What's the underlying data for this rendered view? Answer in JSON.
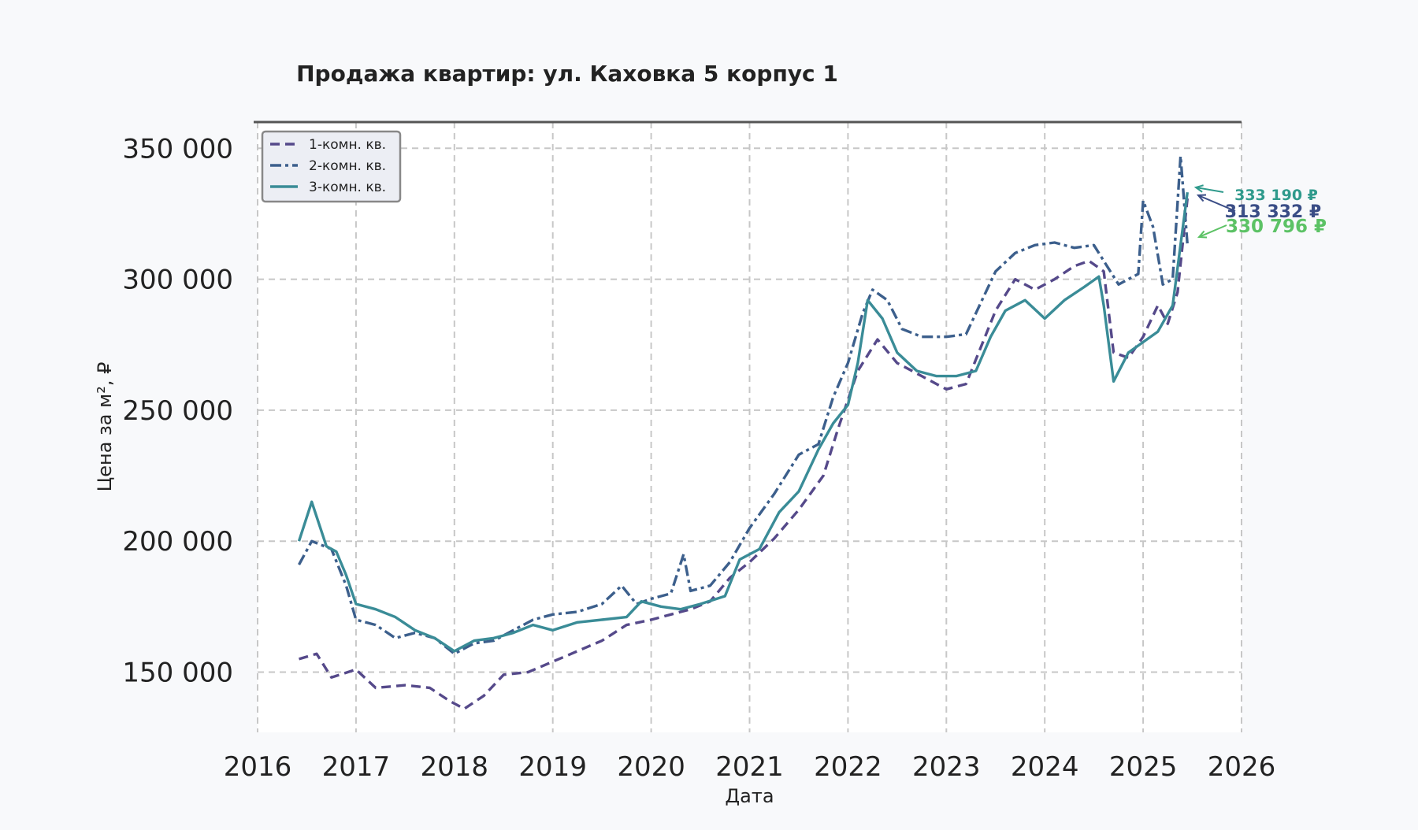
{
  "chart_data": {
    "type": "line",
    "title": "Продажа квартир: ул. Каховка 5 корпус 1",
    "xlabel": "Дата",
    "ylabel": "Цена за м², ₽",
    "xlim": [
      2016,
      2026
    ],
    "ylim": [
      127000,
      360000
    ],
    "x_ticks": [
      "2016",
      "2017",
      "2018",
      "2019",
      "2020",
      "2021",
      "2022",
      "2023",
      "2024",
      "2025",
      "2026"
    ],
    "y_ticks": [
      "150 000",
      "200 000",
      "250 000",
      "300 000",
      "350 000"
    ],
    "grid": true,
    "legend_position": "top-left",
    "series": [
      {
        "name": "1-комн. кв.",
        "color": "#55498a",
        "style": "dashed",
        "points": [
          [
            2016.42,
            155000
          ],
          [
            2016.6,
            157000
          ],
          [
            2016.75,
            148000
          ],
          [
            2017.0,
            151000
          ],
          [
            2017.2,
            144000
          ],
          [
            2017.5,
            145000
          ],
          [
            2017.75,
            144000
          ],
          [
            2017.95,
            139000
          ],
          [
            2018.1,
            136000
          ],
          [
            2018.3,
            141000
          ],
          [
            2018.5,
            149000
          ],
          [
            2018.75,
            150000
          ],
          [
            2019.0,
            154000
          ],
          [
            2019.25,
            158000
          ],
          [
            2019.5,
            162000
          ],
          [
            2019.75,
            168000
          ],
          [
            2020.0,
            170000
          ],
          [
            2020.2,
            172000
          ],
          [
            2020.4,
            174000
          ],
          [
            2020.6,
            177000
          ],
          [
            2020.8,
            186000
          ],
          [
            2021.0,
            192000
          ],
          [
            2021.25,
            201000
          ],
          [
            2021.5,
            212000
          ],
          [
            2021.75,
            225000
          ],
          [
            2021.9,
            243000
          ],
          [
            2022.1,
            265000
          ],
          [
            2022.3,
            277000
          ],
          [
            2022.5,
            268000
          ],
          [
            2022.75,
            263000
          ],
          [
            2023.0,
            258000
          ],
          [
            2023.2,
            260000
          ],
          [
            2023.35,
            274000
          ],
          [
            2023.5,
            288000
          ],
          [
            2023.7,
            300000
          ],
          [
            2023.9,
            296000
          ],
          [
            2024.1,
            300000
          ],
          [
            2024.3,
            305000
          ],
          [
            2024.45,
            307000
          ],
          [
            2024.6,
            303000
          ],
          [
            2024.7,
            272000
          ],
          [
            2024.85,
            270000
          ],
          [
            2025.0,
            278000
          ],
          [
            2025.15,
            290000
          ],
          [
            2025.25,
            283000
          ],
          [
            2025.35,
            295000
          ],
          [
            2025.45,
            330796
          ]
        ]
      },
      {
        "name": "2-комн. кв.",
        "color": "#3c5f8c",
        "style": "dashdot",
        "points": [
          [
            2016.42,
            191000
          ],
          [
            2016.55,
            200000
          ],
          [
            2016.75,
            197000
          ],
          [
            2016.9,
            183000
          ],
          [
            2017.0,
            170000
          ],
          [
            2017.2,
            168000
          ],
          [
            2017.4,
            163000
          ],
          [
            2017.6,
            165000
          ],
          [
            2017.8,
            163000
          ],
          [
            2018.0,
            157000
          ],
          [
            2018.2,
            161000
          ],
          [
            2018.4,
            162000
          ],
          [
            2018.6,
            166000
          ],
          [
            2018.8,
            170000
          ],
          [
            2019.0,
            172000
          ],
          [
            2019.25,
            173000
          ],
          [
            2019.5,
            176000
          ],
          [
            2019.7,
            183000
          ],
          [
            2019.85,
            176000
          ],
          [
            2020.0,
            178000
          ],
          [
            2020.2,
            180000
          ],
          [
            2020.33,
            195000
          ],
          [
            2020.4,
            181000
          ],
          [
            2020.6,
            183000
          ],
          [
            2020.8,
            192000
          ],
          [
            2021.0,
            205000
          ],
          [
            2021.25,
            218000
          ],
          [
            2021.5,
            233000
          ],
          [
            2021.7,
            237000
          ],
          [
            2021.85,
            255000
          ],
          [
            2022.0,
            268000
          ],
          [
            2022.15,
            287000
          ],
          [
            2022.25,
            296000
          ],
          [
            2022.4,
            292000
          ],
          [
            2022.55,
            281000
          ],
          [
            2022.75,
            278000
          ],
          [
            2023.0,
            278000
          ],
          [
            2023.2,
            279000
          ],
          [
            2023.35,
            291000
          ],
          [
            2023.5,
            303000
          ],
          [
            2023.7,
            310000
          ],
          [
            2023.9,
            313000
          ],
          [
            2024.1,
            314000
          ],
          [
            2024.3,
            312000
          ],
          [
            2024.5,
            313000
          ],
          [
            2024.6,
            307000
          ],
          [
            2024.75,
            298000
          ],
          [
            2024.95,
            302000
          ],
          [
            2025.0,
            330000
          ],
          [
            2025.1,
            320000
          ],
          [
            2025.2,
            298000
          ],
          [
            2025.3,
            300000
          ],
          [
            2025.38,
            347000
          ],
          [
            2025.45,
            313332
          ]
        ]
      },
      {
        "name": "3-комн. кв.",
        "color": "#3a8c97",
        "style": "solid",
        "points": [
          [
            2016.42,
            200000
          ],
          [
            2016.55,
            215000
          ],
          [
            2016.7,
            198000
          ],
          [
            2016.8,
            196000
          ],
          [
            2016.9,
            187000
          ],
          [
            2017.0,
            176000
          ],
          [
            2017.2,
            174000
          ],
          [
            2017.4,
            171000
          ],
          [
            2017.6,
            166000
          ],
          [
            2017.8,
            163000
          ],
          [
            2018.0,
            158000
          ],
          [
            2018.2,
            162000
          ],
          [
            2018.4,
            163000
          ],
          [
            2018.6,
            165000
          ],
          [
            2018.8,
            168000
          ],
          [
            2019.0,
            166000
          ],
          [
            2019.25,
            169000
          ],
          [
            2019.5,
            170000
          ],
          [
            2019.75,
            171000
          ],
          [
            2019.9,
            177000
          ],
          [
            2020.1,
            175000
          ],
          [
            2020.3,
            174000
          ],
          [
            2020.5,
            176000
          ],
          [
            2020.75,
            179000
          ],
          [
            2020.9,
            193000
          ],
          [
            2021.1,
            197000
          ],
          [
            2021.3,
            211000
          ],
          [
            2021.5,
            219000
          ],
          [
            2021.7,
            235000
          ],
          [
            2021.85,
            245000
          ],
          [
            2022.0,
            252000
          ],
          [
            2022.1,
            268000
          ],
          [
            2022.2,
            292000
          ],
          [
            2022.35,
            285000
          ],
          [
            2022.5,
            272000
          ],
          [
            2022.7,
            265000
          ],
          [
            2022.9,
            263000
          ],
          [
            2023.1,
            263000
          ],
          [
            2023.3,
            265000
          ],
          [
            2023.45,
            278000
          ],
          [
            2023.6,
            288000
          ],
          [
            2023.8,
            292000
          ],
          [
            2024.0,
            285000
          ],
          [
            2024.2,
            292000
          ],
          [
            2024.4,
            297000
          ],
          [
            2024.55,
            301000
          ],
          [
            2024.6,
            290000
          ],
          [
            2024.7,
            261000
          ],
          [
            2024.85,
            272000
          ],
          [
            2025.0,
            276000
          ],
          [
            2025.15,
            280000
          ],
          [
            2025.3,
            290000
          ],
          [
            2025.45,
            333190
          ]
        ]
      }
    ],
    "annotations": [
      {
        "text": "333 190 ₽",
        "series": "3-комн. кв.",
        "value": 333190,
        "color": "#2f9a8c"
      },
      {
        "text": "313 332 ₽",
        "series": "2-комн. кв.",
        "value": 313332,
        "color": "#3a4d86"
      },
      {
        "text": "330 796 ₽",
        "series": "1-комн. кв.",
        "value": 330796,
        "color": "#5cc265"
      }
    ]
  }
}
